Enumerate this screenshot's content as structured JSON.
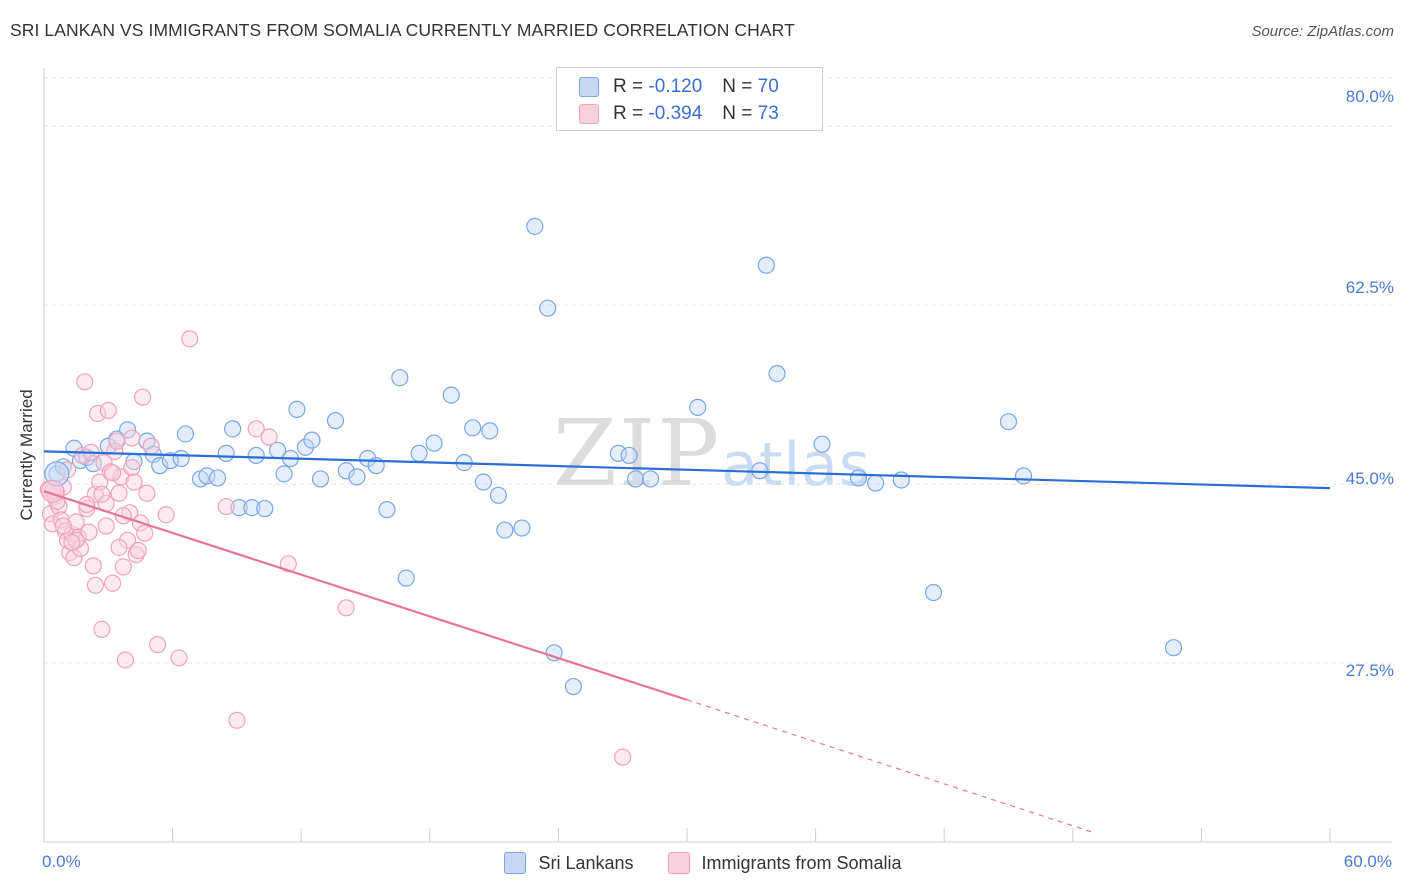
{
  "title": "SRI LANKAN VS IMMIGRANTS FROM SOMALIA CURRENTLY MARRIED CORRELATION CHART",
  "source": "Source: ZipAtlas.com",
  "watermark": {
    "zip": "ZIP",
    "atlas": "atlas"
  },
  "legend_top": [
    {
      "r_label": "R =",
      "r_value": "-0.120",
      "n_label": "N =",
      "n_value": "70"
    },
    {
      "r_label": "R =",
      "r_value": "-0.394",
      "n_label": "N =",
      "n_value": "73"
    }
  ],
  "chart_data": {
    "type": "scatter",
    "title": "SRI LANKAN VS IMMIGRANTS FROM SOMALIA CURRENTLY MARRIED CORRELATION CHART",
    "xlabel": "",
    "ylabel": "Currently Married",
    "xlim": [
      0,
      60
    ],
    "ylim": [
      10,
      85
    ],
    "x_ticks": [
      0,
      6,
      12,
      18,
      24,
      30,
      36,
      42,
      48,
      54,
      60
    ],
    "x_tick_labels": [
      {
        "value": 0,
        "label": "0.0%"
      },
      {
        "value": 60,
        "label": "60.0%"
      }
    ],
    "y_ticks": [
      {
        "value": 80,
        "label": "80.0%"
      },
      {
        "value": 62.5,
        "label": "62.5%"
      },
      {
        "value": 45,
        "label": "45.0%"
      },
      {
        "value": 27.5,
        "label": "27.5%"
      }
    ],
    "grid": true,
    "series": [
      {
        "name": "Sri Lankans",
        "color": "#7aa6e8",
        "fill": "#c4d8f4",
        "line_color": "#2a6fd4",
        "trend": {
          "x": [
            0,
            60
          ],
          "y": [
            48.2,
            44.6
          ]
        },
        "points": [
          [
            0.6,
            46.0
          ],
          [
            0.9,
            46.7
          ],
          [
            1.4,
            48.5
          ],
          [
            1.7,
            47.3
          ],
          [
            2.0,
            47.6
          ],
          [
            2.3,
            47.0
          ],
          [
            3.0,
            48.7
          ],
          [
            3.4,
            49.4
          ],
          [
            3.9,
            50.3
          ],
          [
            4.2,
            47.2
          ],
          [
            4.8,
            49.2
          ],
          [
            5.1,
            47.9
          ],
          [
            5.4,
            46.8
          ],
          [
            5.9,
            47.3
          ],
          [
            6.4,
            47.5
          ],
          [
            6.6,
            49.9
          ],
          [
            7.3,
            45.5
          ],
          [
            7.6,
            45.8
          ],
          [
            8.1,
            45.6
          ],
          [
            8.5,
            48.0
          ],
          [
            8.8,
            50.4
          ],
          [
            9.1,
            42.7
          ],
          [
            9.7,
            42.7
          ],
          [
            9.9,
            47.8
          ],
          [
            10.3,
            42.6
          ],
          [
            10.9,
            48.3
          ],
          [
            11.2,
            46.0
          ],
          [
            11.5,
            47.5
          ],
          [
            11.8,
            52.3
          ],
          [
            12.2,
            48.6
          ],
          [
            12.5,
            49.3
          ],
          [
            12.9,
            45.5
          ],
          [
            13.6,
            51.2
          ],
          [
            14.1,
            46.3
          ],
          [
            14.6,
            45.7
          ],
          [
            15.1,
            47.5
          ],
          [
            15.5,
            46.8
          ],
          [
            16.0,
            42.5
          ],
          [
            16.6,
            55.4
          ],
          [
            16.9,
            35.8
          ],
          [
            17.5,
            48.0
          ],
          [
            18.2,
            49.0
          ],
          [
            19.0,
            53.7
          ],
          [
            19.6,
            47.1
          ],
          [
            20.0,
            50.5
          ],
          [
            20.5,
            45.2
          ],
          [
            20.8,
            50.2
          ],
          [
            21.2,
            43.9
          ],
          [
            21.5,
            40.5
          ],
          [
            22.3,
            40.7
          ],
          [
            22.9,
            70.2
          ],
          [
            23.5,
            62.2
          ],
          [
            23.8,
            28.5
          ],
          [
            24.7,
            25.2
          ],
          [
            26.8,
            48.0
          ],
          [
            27.3,
            47.8
          ],
          [
            27.6,
            45.5
          ],
          [
            28.3,
            45.5
          ],
          [
            30.5,
            52.5
          ],
          [
            33.4,
            46.3
          ],
          [
            33.7,
            66.4
          ],
          [
            34.2,
            55.8
          ],
          [
            36.3,
            48.9
          ],
          [
            38.0,
            45.6
          ],
          [
            38.8,
            45.1
          ],
          [
            40.0,
            45.4
          ],
          [
            41.5,
            34.4
          ],
          [
            45.0,
            51.1
          ],
          [
            45.7,
            45.8
          ],
          [
            52.7,
            29.0
          ]
        ]
      },
      {
        "name": "Immigrants from Somalia",
        "color": "#f0a2bd",
        "fill": "#f8d0dd",
        "line_color": "#e8739b",
        "trend": {
          "x": [
            0,
            30
          ],
          "y": [
            44.3,
            23.9
          ]
        },
        "trend_dashed": {
          "x": [
            30,
            49
          ],
          "y": [
            23.9,
            10.9
          ]
        },
        "points": [
          [
            0.2,
            44.5
          ],
          [
            0.3,
            42.1
          ],
          [
            0.4,
            41.1
          ],
          [
            0.5,
            43.8
          ],
          [
            0.6,
            44.2
          ],
          [
            0.7,
            42.8
          ],
          [
            0.8,
            41.5
          ],
          [
            0.9,
            44.7
          ],
          [
            1.0,
            40.4
          ],
          [
            1.1,
            39.5
          ],
          [
            1.2,
            38.3
          ],
          [
            1.3,
            40.1
          ],
          [
            1.4,
            37.8
          ],
          [
            1.5,
            41.3
          ],
          [
            1.6,
            39.8
          ],
          [
            1.7,
            38.7
          ],
          [
            1.8,
            47.8
          ],
          [
            1.9,
            55.0
          ],
          [
            2.0,
            42.6
          ],
          [
            2.1,
            40.3
          ],
          [
            2.2,
            48.1
          ],
          [
            2.3,
            37.0
          ],
          [
            2.4,
            44.0
          ],
          [
            2.5,
            51.9
          ],
          [
            2.6,
            45.2
          ],
          [
            2.7,
            30.8
          ],
          [
            2.8,
            47.1
          ],
          [
            2.9,
            40.9
          ],
          [
            3.0,
            52.2
          ],
          [
            3.1,
            46.2
          ],
          [
            3.2,
            35.3
          ],
          [
            3.3,
            48.2
          ],
          [
            3.4,
            49.2
          ],
          [
            3.5,
            44.1
          ],
          [
            3.6,
            45.7
          ],
          [
            3.7,
            36.9
          ],
          [
            3.8,
            27.8
          ],
          [
            3.9,
            39.5
          ],
          [
            4.0,
            42.2
          ],
          [
            4.1,
            46.6
          ],
          [
            4.2,
            45.2
          ],
          [
            4.3,
            38.1
          ],
          [
            4.4,
            38.5
          ],
          [
            4.5,
            41.2
          ],
          [
            4.6,
            53.5
          ],
          [
            4.7,
            40.2
          ],
          [
            4.8,
            44.1
          ],
          [
            5.0,
            48.7
          ],
          [
            5.3,
            29.3
          ],
          [
            5.7,
            42.0
          ],
          [
            6.3,
            28.0
          ],
          [
            6.8,
            59.2
          ],
          [
            8.5,
            42.8
          ],
          [
            9.0,
            21.9
          ],
          [
            9.9,
            50.4
          ],
          [
            10.5,
            49.6
          ],
          [
            11.4,
            37.2
          ],
          [
            14.1,
            32.9
          ],
          [
            27.0,
            18.3
          ],
          [
            1.1,
            46.4
          ],
          [
            2.9,
            43.1
          ],
          [
            3.7,
            41.9
          ],
          [
            0.6,
            43.3
          ],
          [
            1.5,
            39.5
          ],
          [
            2.4,
            35.1
          ],
          [
            4.1,
            49.5
          ],
          [
            0.9,
            40.9
          ],
          [
            2.0,
            43.0
          ],
          [
            3.2,
            46.1
          ],
          [
            1.3,
            39.3
          ],
          [
            2.7,
            44.0
          ],
          [
            0.4,
            44.3
          ],
          [
            3.5,
            38.8
          ]
        ]
      }
    ],
    "legend": [
      "Sri Lankans",
      "Immigrants from Somalia"
    ],
    "legend_position": "bottom-center"
  }
}
